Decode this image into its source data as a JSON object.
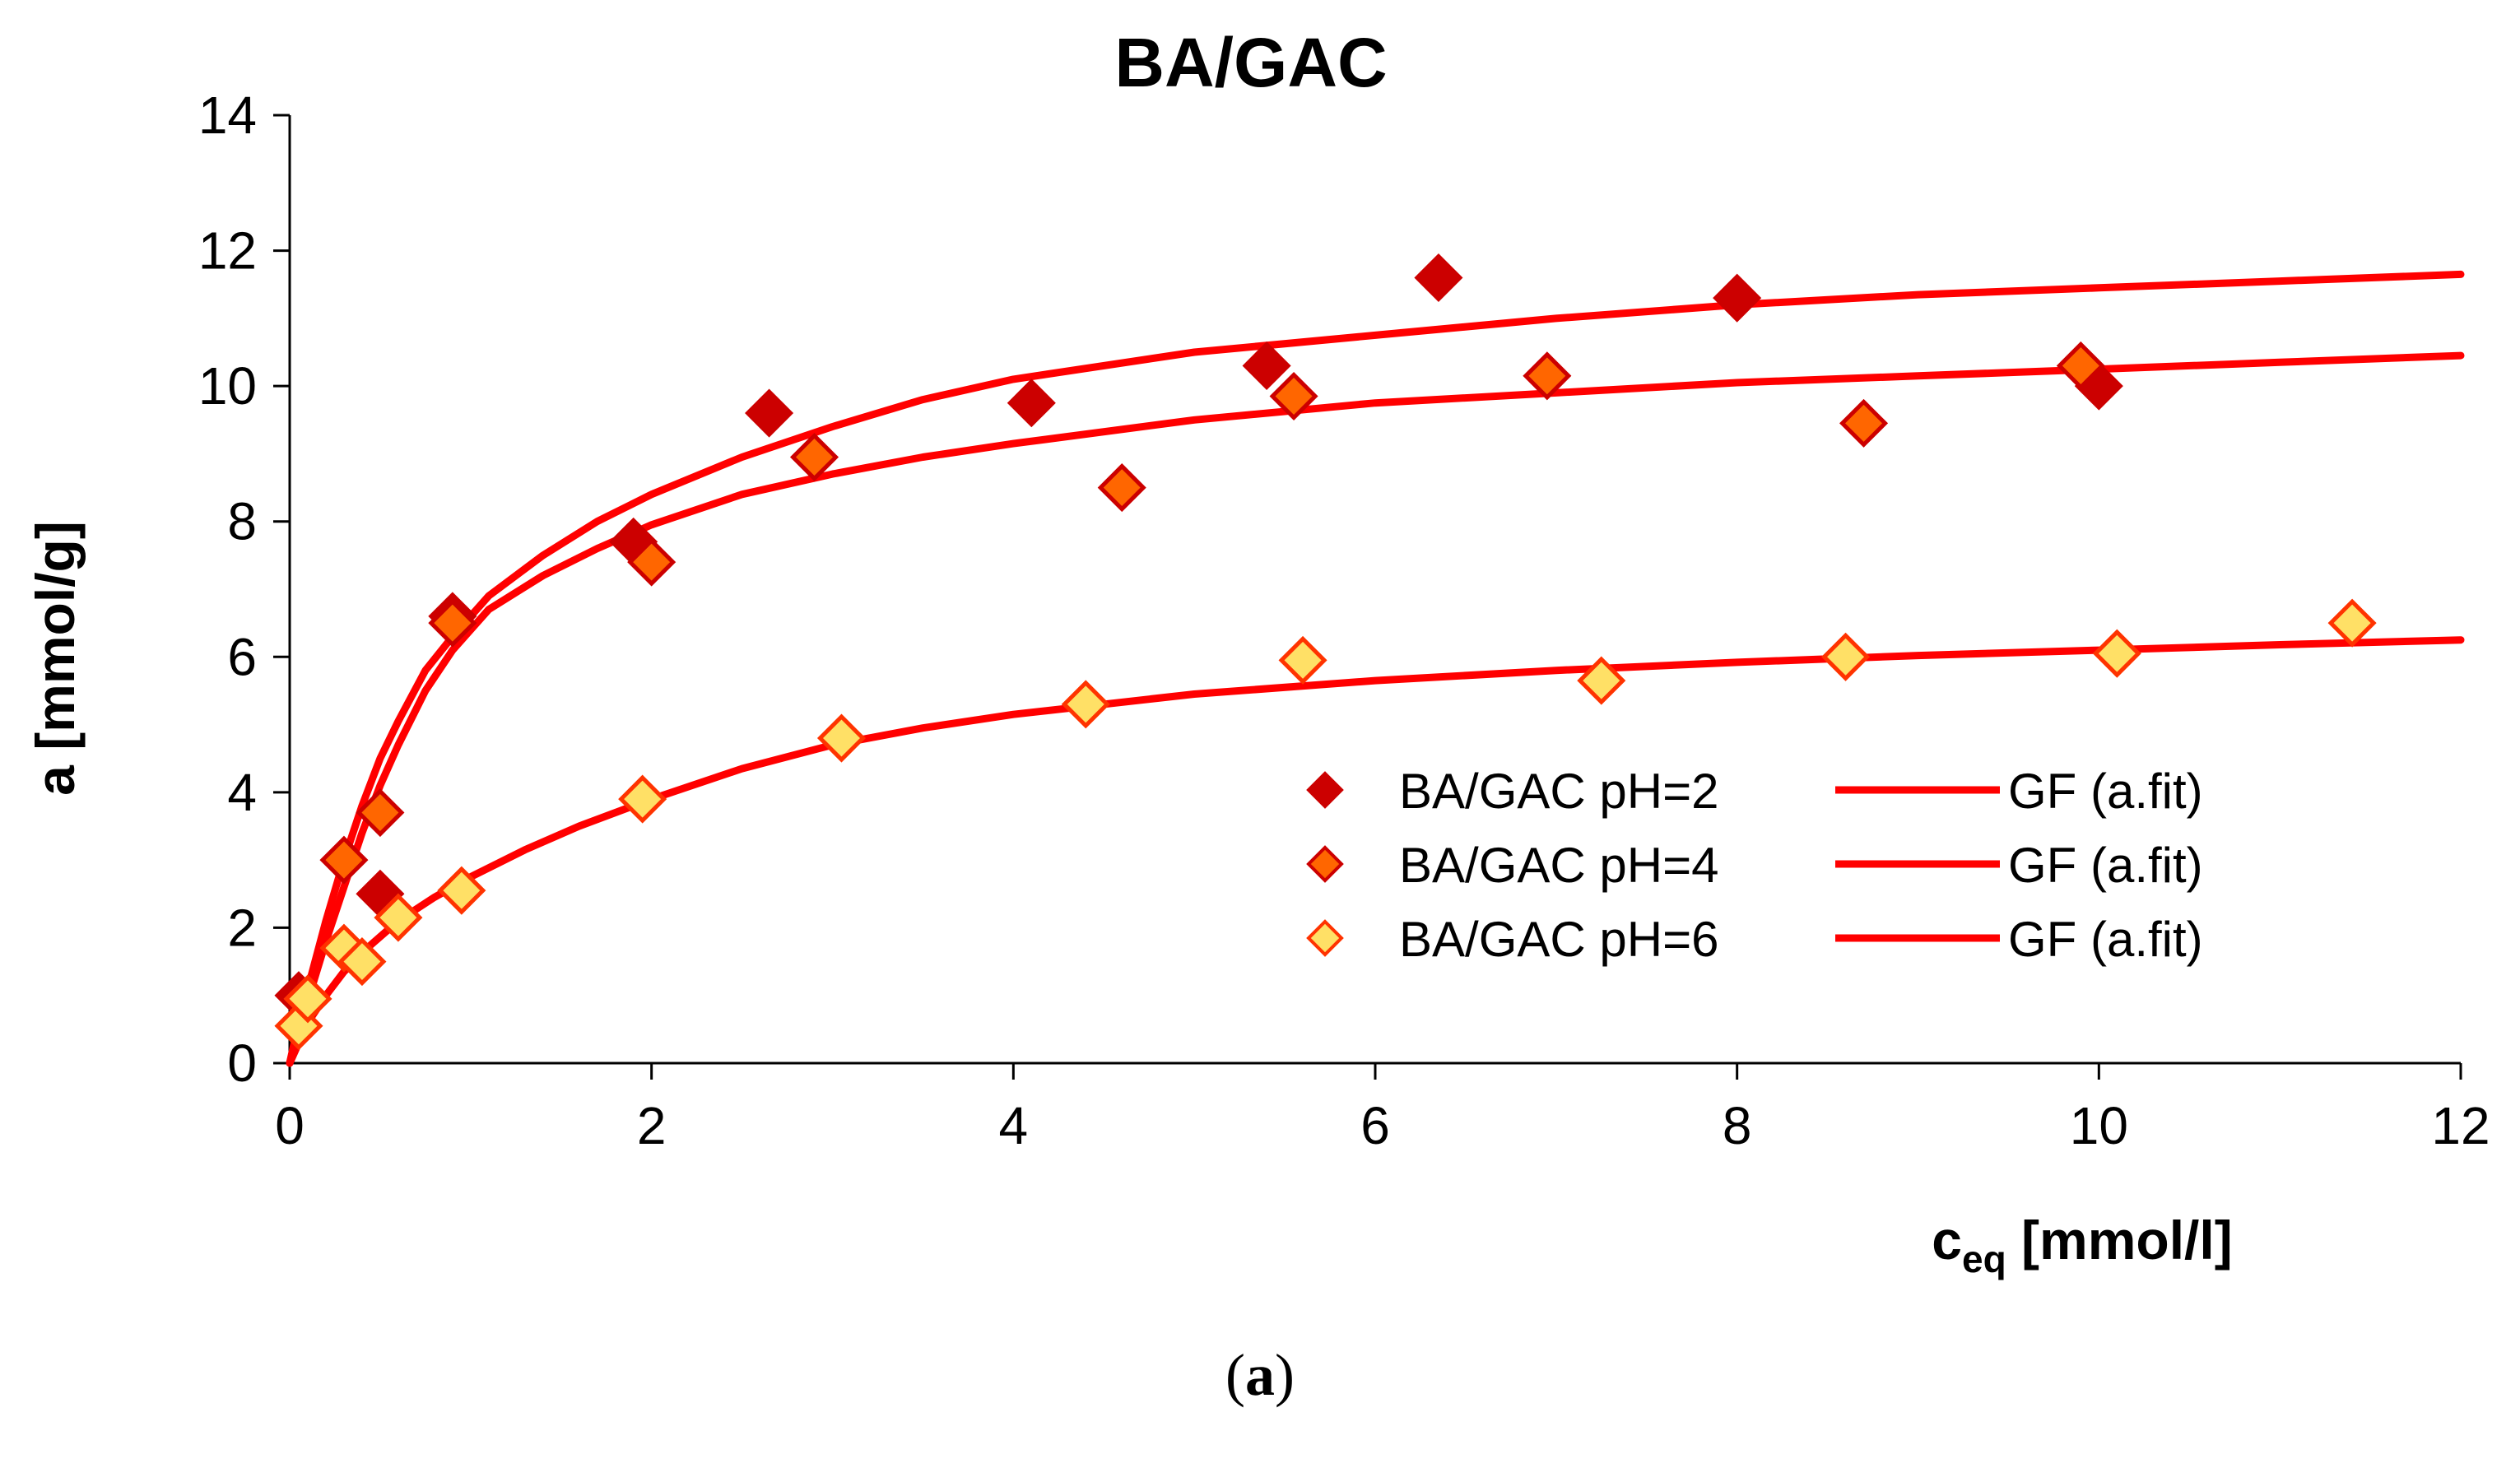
{
  "chart_data": {
    "type": "scatter",
    "title": "BA/GAC",
    "xlabel": {
      "main": "c",
      "sub": "eq",
      "unit": " [mmol/l]"
    },
    "ylabel": "a [mmol/g]",
    "xlim": [
      0,
      12
    ],
    "ylim": [
      0,
      14
    ],
    "xticks": [
      0,
      2,
      4,
      6,
      8,
      10,
      12
    ],
    "yticks": [
      0,
      2,
      4,
      6,
      8,
      10,
      12,
      14
    ],
    "grid": false,
    "legend_position": "center-right",
    "series": [
      {
        "name": "BA/GAC pH=2",
        "fit_name": "GF (a.fit)",
        "marker_fill": "#cc0000",
        "marker_stroke": "#cc0000",
        "points": [
          [
            0.05,
            1.0
          ],
          [
            0.5,
            2.5
          ],
          [
            0.9,
            6.6
          ],
          [
            1.9,
            7.7
          ],
          [
            2.65,
            9.6
          ],
          [
            4.1,
            9.75
          ],
          [
            5.4,
            10.3
          ],
          [
            6.35,
            11.6
          ],
          [
            8.0,
            11.3
          ],
          [
            10.0,
            10.0
          ]
        ],
        "fit": [
          [
            0.0,
            0.0
          ],
          [
            0.05,
            0.6
          ],
          [
            0.12,
            1.3
          ],
          [
            0.2,
            2.1
          ],
          [
            0.3,
            3.0
          ],
          [
            0.4,
            3.8
          ],
          [
            0.5,
            4.5
          ],
          [
            0.6,
            5.05
          ],
          [
            0.75,
            5.8
          ],
          [
            0.9,
            6.3
          ],
          [
            1.1,
            6.9
          ],
          [
            1.4,
            7.5
          ],
          [
            1.7,
            8.0
          ],
          [
            2.0,
            8.4
          ],
          [
            2.5,
            8.95
          ],
          [
            3.0,
            9.4
          ],
          [
            3.5,
            9.8
          ],
          [
            4.0,
            10.1
          ],
          [
            5.0,
            10.5
          ],
          [
            6.0,
            10.75
          ],
          [
            7.0,
            11.0
          ],
          [
            8.0,
            11.2
          ],
          [
            9.0,
            11.35
          ],
          [
            10.0,
            11.45
          ],
          [
            11.0,
            11.55
          ],
          [
            12.0,
            11.65
          ]
        ]
      },
      {
        "name": "BA/GAC pH=4",
        "fit_name": "GF (a.fit)",
        "marker_fill": "#ff6600",
        "marker_stroke": "#cc0000",
        "points": [
          [
            0.3,
            3.0
          ],
          [
            0.5,
            3.7
          ],
          [
            0.9,
            6.5
          ],
          [
            2.0,
            7.4
          ],
          [
            2.9,
            8.95
          ],
          [
            4.6,
            8.5
          ],
          [
            5.55,
            9.85
          ],
          [
            6.95,
            10.15
          ],
          [
            8.7,
            9.45
          ],
          [
            9.9,
            10.3
          ]
        ],
        "fit": [
          [
            0.0,
            0.0
          ],
          [
            0.05,
            0.5
          ],
          [
            0.12,
            1.1
          ],
          [
            0.2,
            1.8
          ],
          [
            0.3,
            2.6
          ],
          [
            0.4,
            3.4
          ],
          [
            0.5,
            4.1
          ],
          [
            0.6,
            4.7
          ],
          [
            0.75,
            5.5
          ],
          [
            0.9,
            6.1
          ],
          [
            1.1,
            6.7
          ],
          [
            1.4,
            7.2
          ],
          [
            1.7,
            7.6
          ],
          [
            2.0,
            7.95
          ],
          [
            2.5,
            8.4
          ],
          [
            3.0,
            8.7
          ],
          [
            3.5,
            8.95
          ],
          [
            4.0,
            9.15
          ],
          [
            5.0,
            9.5
          ],
          [
            6.0,
            9.75
          ],
          [
            7.0,
            9.9
          ],
          [
            8.0,
            10.05
          ],
          [
            9.0,
            10.15
          ],
          [
            10.0,
            10.25
          ],
          [
            11.0,
            10.35
          ],
          [
            12.0,
            10.45
          ]
        ]
      },
      {
        "name": "BA/GAC pH=6",
        "fit_name": "GF (a.fit)",
        "marker_fill": "#ffe066",
        "marker_stroke": "#ff3300",
        "points": [
          [
            0.05,
            0.55
          ],
          [
            0.1,
            0.95
          ],
          [
            0.3,
            1.7
          ],
          [
            0.4,
            1.5
          ],
          [
            0.6,
            2.15
          ],
          [
            0.95,
            2.55
          ],
          [
            1.95,
            3.9
          ],
          [
            3.05,
            4.8
          ],
          [
            4.4,
            5.3
          ],
          [
            5.6,
            5.95
          ],
          [
            7.25,
            5.65
          ],
          [
            8.6,
            6.0
          ],
          [
            10.1,
            6.05
          ],
          [
            11.4,
            6.5
          ]
        ],
        "fit": [
          [
            0.0,
            0.0
          ],
          [
            0.1,
            0.6
          ],
          [
            0.2,
            1.0
          ],
          [
            0.3,
            1.35
          ],
          [
            0.45,
            1.75
          ],
          [
            0.6,
            2.1
          ],
          [
            0.8,
            2.45
          ],
          [
            1.0,
            2.75
          ],
          [
            1.3,
            3.15
          ],
          [
            1.6,
            3.5
          ],
          [
            2.0,
            3.9
          ],
          [
            2.5,
            4.35
          ],
          [
            3.0,
            4.7
          ],
          [
            3.5,
            4.95
          ],
          [
            4.0,
            5.15
          ],
          [
            5.0,
            5.45
          ],
          [
            6.0,
            5.65
          ],
          [
            7.0,
            5.8
          ],
          [
            8.0,
            5.92
          ],
          [
            9.0,
            6.02
          ],
          [
            10.0,
            6.1
          ],
          [
            11.0,
            6.18
          ],
          [
            12.0,
            6.25
          ]
        ]
      }
    ],
    "fit_color": "#ff0000"
  },
  "caption": {
    "open": "(",
    "letter": "a",
    "close": ")"
  }
}
